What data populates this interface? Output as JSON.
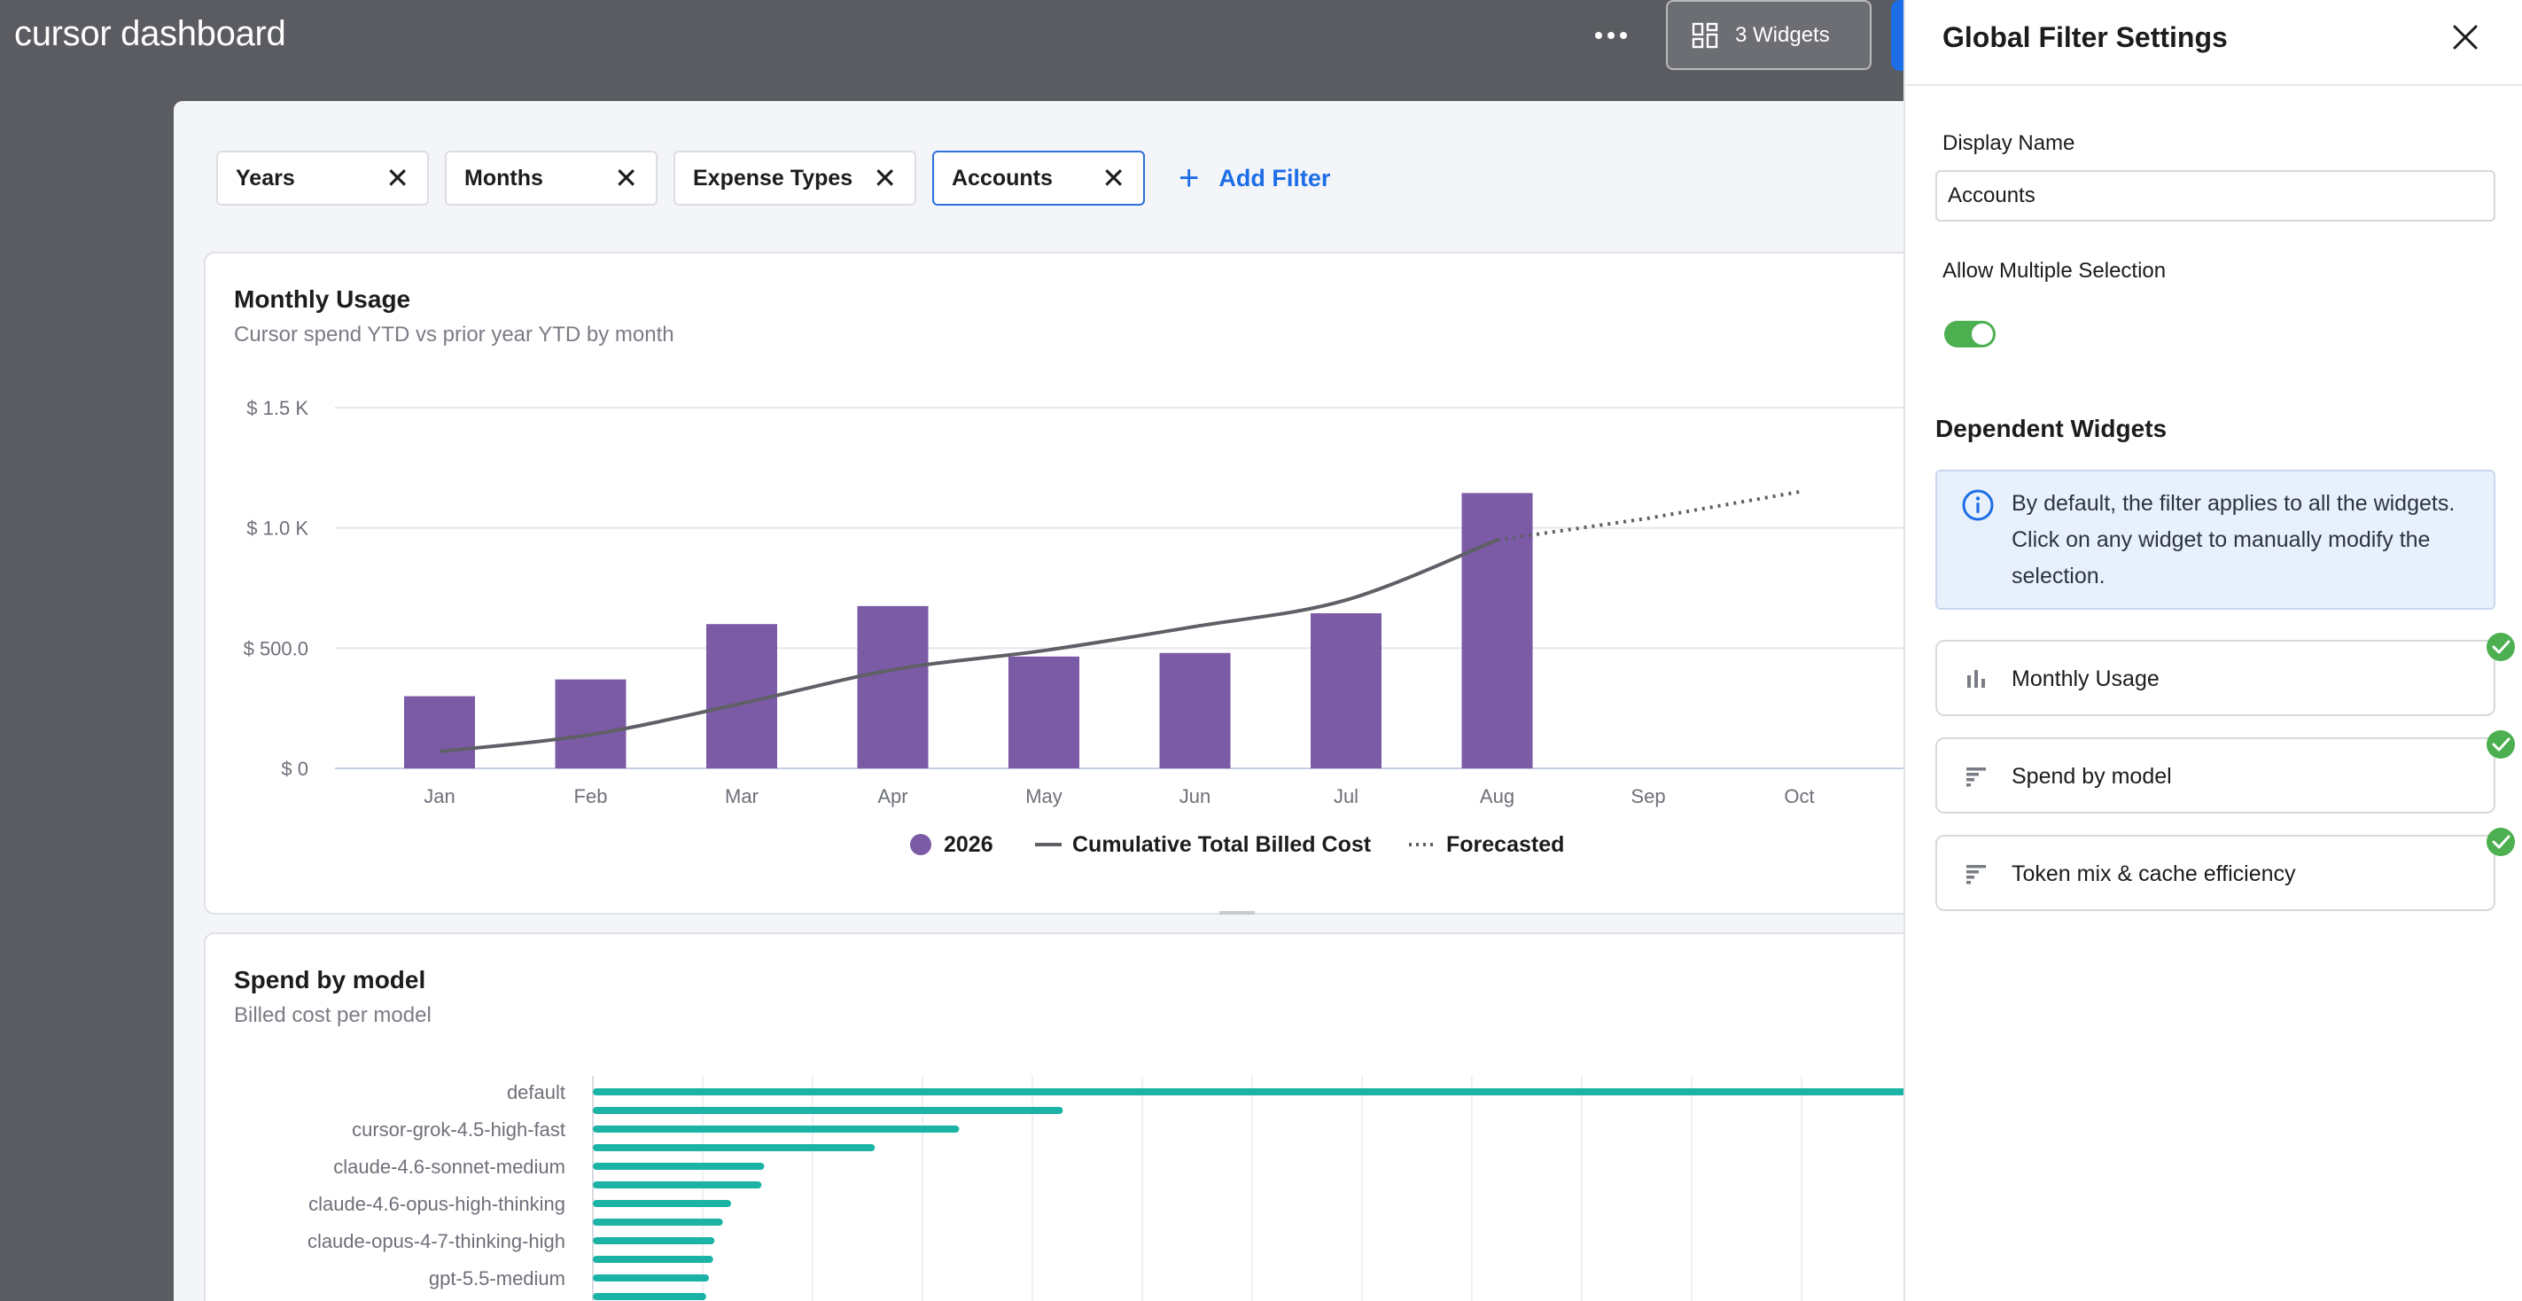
{
  "app": {
    "title": "cursor dashboard",
    "widgets_button_label": "3 Widgets"
  },
  "filters": {
    "chips": [
      {
        "label": "Years"
      },
      {
        "label": "Months"
      },
      {
        "label": "Expense Types"
      },
      {
        "label": "Accounts"
      }
    ],
    "add_label": "Add Filter"
  },
  "monthly_usage": {
    "title": "Monthly Usage",
    "subtitle": "Cursor spend YTD vs prior year YTD by month",
    "legend": {
      "bars": "2026",
      "line": "Cumulative Total Billed Cost",
      "forecast": "Forecasted"
    }
  },
  "spend_by_model": {
    "title": "Spend by model",
    "subtitle": "Billed cost per model"
  },
  "chart_data": [
    {
      "type": "bar",
      "title": "Monthly Usage",
      "subtitle": "Cursor spend YTD vs prior year YTD by month",
      "categories": [
        "Jan",
        "Feb",
        "Mar",
        "Apr",
        "May",
        "Jun",
        "Jul",
        "Aug",
        "Sep",
        "Oct"
      ],
      "y_tick_labels": [
        "$ 0",
        "$ 500.0",
        "$ 1.0 K",
        "$ 1.5 K"
      ],
      "ylim": [
        0,
        1500
      ],
      "grid": true,
      "legend_position": "bottom",
      "series": [
        {
          "name": "2026",
          "type": "bar",
          "color": "#7b5aa6",
          "values": [
            300,
            370,
            600,
            675,
            465,
            480,
            645,
            1145,
            null,
            null
          ]
        },
        {
          "name": "Cumulative Total Billed Cost",
          "type": "line",
          "color": "#5f6066",
          "values": [
            70,
            140,
            270,
            410,
            490,
            590,
            700,
            950,
            null,
            null
          ]
        },
        {
          "name": "Forecasted",
          "type": "line-dotted",
          "color": "#5f6066",
          "values": [
            null,
            null,
            null,
            null,
            null,
            null,
            null,
            950,
            1040,
            1150
          ]
        }
      ]
    },
    {
      "type": "bar",
      "orientation": "horizontal",
      "title": "Spend by model",
      "subtitle": "Billed cost per model",
      "color": "#1bb3a5",
      "rows": [
        {
          "label": "default",
          "value": 1.0
        },
        {
          "label": "",
          "value": 0.34
        },
        {
          "label": "cursor-grok-4.5-high-fast",
          "value": 0.265
        },
        {
          "label": "",
          "value": 0.204
        },
        {
          "label": "claude-4.6-sonnet-medium",
          "value": 0.124
        },
        {
          "label": "",
          "value": 0.122
        },
        {
          "label": "claude-4.6-opus-high-thinking",
          "value": 0.1
        },
        {
          "label": "",
          "value": 0.094
        },
        {
          "label": "claude-opus-4-7-thinking-high",
          "value": 0.088
        },
        {
          "label": "",
          "value": 0.087
        },
        {
          "label": "gpt-5.5-medium",
          "value": 0.084
        },
        {
          "label": "",
          "value": 0.082
        }
      ]
    }
  ],
  "panel": {
    "title": "Global Filter Settings",
    "display_name_label": "Display Name",
    "display_name_value": "Accounts",
    "multi_select_label": "Allow Multiple Selection",
    "multi_select_on": true,
    "dependent_title": "Dependent Widgets",
    "info_text": "By default, the filter applies to all the widgets. Click on any widget to manually modify the selection.",
    "widgets": [
      {
        "label": "Monthly Usage",
        "icon": "bar-chart-icon",
        "selected": true
      },
      {
        "label": "Spend by model",
        "icon": "horizontal-bars-icon",
        "selected": true
      },
      {
        "label": "Token mix & cache efficiency",
        "icon": "horizontal-bars-icon",
        "selected": true
      }
    ]
  }
}
